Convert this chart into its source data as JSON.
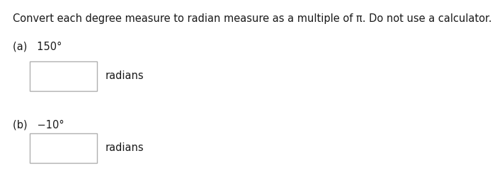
{
  "background_color": "#ffffff",
  "title_text": "Convert each degree measure to radian measure as a multiple of π. Do not use a calculator.",
  "title_fontsize": 10.5,
  "title_color": "#1a1a1a",
  "part_a_label": "(a)   150°",
  "part_b_label": "(b)   −10°",
  "radians_label": "radians",
  "radians_fontsize": 10.5,
  "label_color": "#1a1a1a",
  "part_fontsize": 10.5,
  "box_edge_color": "#b0b0b0",
  "box_face_color": "#ffffff",
  "fig_width": 7.09,
  "fig_height": 2.41,
  "dpi": 100
}
